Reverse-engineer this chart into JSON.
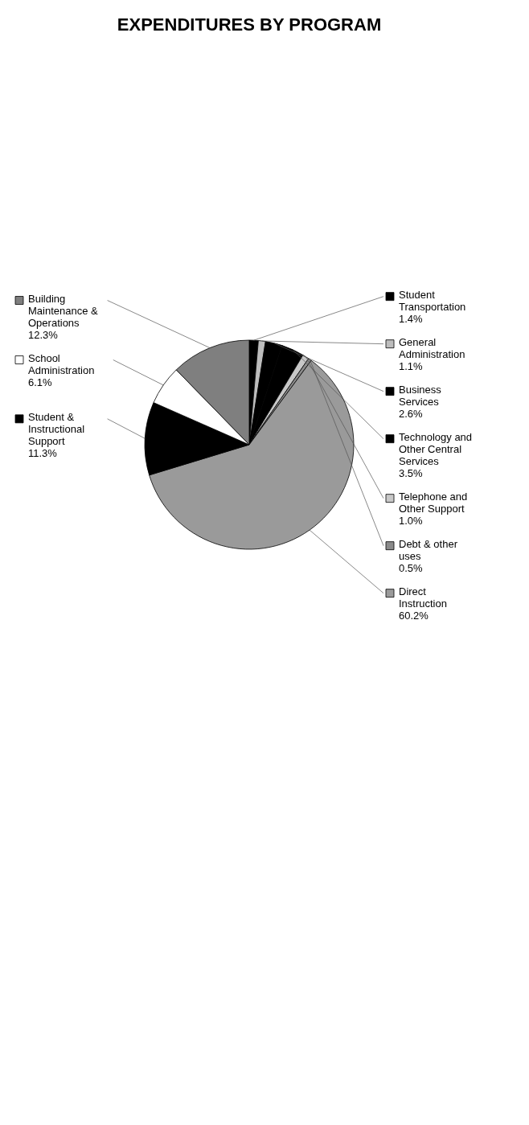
{
  "chart_data": {
    "type": "pie",
    "title": "EXPENDITURES BY PROGRAM",
    "categories": [
      "Student Transportation",
      "General Administration",
      "Business Services",
      "Technology and Other Central Services",
      "Telephone and Other Support",
      "Debt & other uses",
      "Direct Instruction",
      "Student & Instructional Support",
      "School Administration",
      "Building Maintenance & Operations"
    ],
    "values": [
      1.4,
      1.1,
      2.6,
      3.5,
      1.0,
      0.5,
      60.2,
      11.3,
      6.1,
      12.3
    ],
    "value_labels": [
      "1.4%",
      "1.1%",
      "2.6%",
      "3.5%",
      "1.0%",
      "0.5%",
      "60.2%",
      "11.3%",
      "6.1%",
      "12.3%"
    ],
    "legend": "right",
    "colors": [
      "#000000",
      "#bdbdbd",
      "#000000",
      "#000000",
      "#c8c8c8",
      "#8a8a8a",
      "#9a9a9a",
      "#000000",
      "#ffffff",
      "#7f7f7f"
    ]
  }
}
